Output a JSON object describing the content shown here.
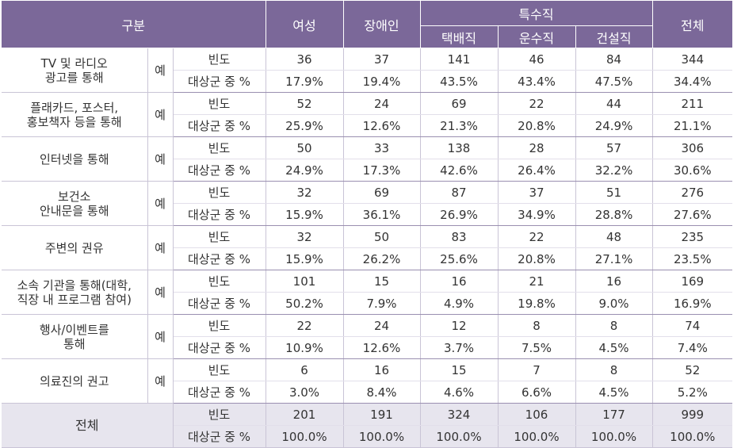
{
  "header": {
    "category": "구분",
    "female": "여성",
    "disabled": "장애인",
    "special": "특수직",
    "delivery": "택배직",
    "transport": "운수직",
    "construction": "건설직",
    "total": "전체"
  },
  "labels": {
    "yes": "예",
    "freq": "빈도",
    "pct": "대상군 중 %"
  },
  "rows": [
    {
      "name": "TV 및 라디오\n광고를 통해",
      "freq": [
        "36",
        "37",
        "141",
        "46",
        "84",
        "344"
      ],
      "pct": [
        "17.9%",
        "19.4%",
        "43.5%",
        "43.4%",
        "47.5%",
        "34.4%"
      ]
    },
    {
      "name": "플래카드, 포스터,\n홍보책자 등을 통해",
      "freq": [
        "52",
        "24",
        "69",
        "22",
        "44",
        "211"
      ],
      "pct": [
        "25.9%",
        "12.6%",
        "21.3%",
        "20.8%",
        "24.9%",
        "21.1%"
      ]
    },
    {
      "name": "인터넷을 통해",
      "freq": [
        "50",
        "33",
        "138",
        "28",
        "57",
        "306"
      ],
      "pct": [
        "24.9%",
        "17.3%",
        "42.6%",
        "26.4%",
        "32.2%",
        "30.6%"
      ]
    },
    {
      "name": "보건소\n안내문을 통해",
      "freq": [
        "32",
        "69",
        "87",
        "37",
        "51",
        "276"
      ],
      "pct": [
        "15.9%",
        "36.1%",
        "26.9%",
        "34.9%",
        "28.8%",
        "27.6%"
      ]
    },
    {
      "name": "주변의 권유",
      "freq": [
        "32",
        "50",
        "83",
        "22",
        "48",
        "235"
      ],
      "pct": [
        "15.9%",
        "26.2%",
        "25.6%",
        "20.8%",
        "27.1%",
        "23.5%"
      ]
    },
    {
      "name": "소속 기관을 통해(대학,\n직장 내 프로그램 참여)",
      "freq": [
        "101",
        "15",
        "16",
        "21",
        "16",
        "169"
      ],
      "pct": [
        "50.2%",
        "7.9%",
        "4.9%",
        "19.8%",
        "9.0%",
        "16.9%"
      ]
    },
    {
      "name": "행사/이벤트를\n통해",
      "freq": [
        "22",
        "24",
        "12",
        "8",
        "8",
        "74"
      ],
      "pct": [
        "10.9%",
        "12.6%",
        "3.7%",
        "7.5%",
        "4.5%",
        "7.4%"
      ]
    },
    {
      "name": "의료진의 권고",
      "freq": [
        "6",
        "16",
        "15",
        "7",
        "8",
        "52"
      ],
      "pct": [
        "3.0%",
        "8.4%",
        "4.6%",
        "6.6%",
        "4.5%",
        "5.2%"
      ]
    }
  ],
  "total": {
    "name": "전체",
    "freq": [
      "201",
      "191",
      "324",
      "106",
      "177",
      "999"
    ],
    "pct": [
      "100.0%",
      "100.0%",
      "100.0%",
      "100.0%",
      "100.0%",
      "100.0%"
    ]
  },
  "colors": {
    "header_bg": "#7b6899",
    "total_bg": "#e7e5ee"
  }
}
